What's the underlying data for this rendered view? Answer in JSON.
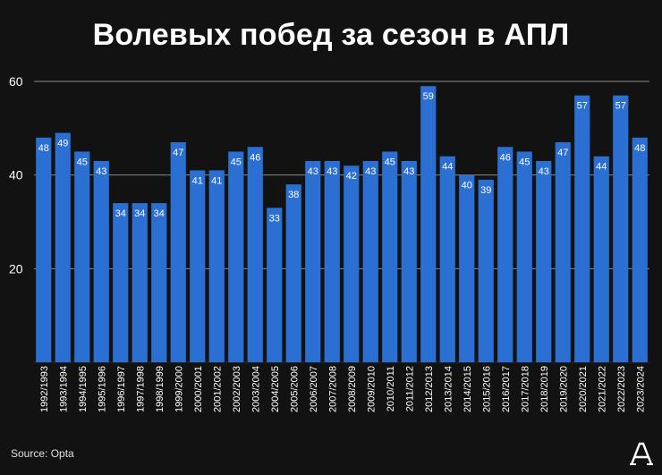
{
  "title": "Волевых побед за сезон в АПЛ",
  "source": "Source: Opta",
  "colors": {
    "background": "#121212",
    "bar": "#2a6fd1",
    "grid": "#8a8a8a",
    "text": "#ffffff"
  },
  "chart_data": {
    "type": "bar",
    "title": "Волевых побед за сезон в АПЛ",
    "xlabel": "",
    "ylabel": "",
    "ylim": [
      0,
      60
    ],
    "yticks": [
      20,
      40,
      60
    ],
    "grid": true,
    "categories": [
      "1992/1993",
      "1993/1994",
      "1994/1995",
      "1995/1996",
      "1996/1997",
      "1997/1998",
      "1998/1999",
      "1999/2000",
      "2000/2001",
      "2001/2002",
      "2002/2003",
      "2003/2004",
      "2004/2005",
      "2005/2006",
      "2006/2007",
      "2007/2008",
      "2008/2009",
      "2009/2010",
      "2010/2011",
      "2011/2012",
      "2012/2013",
      "2013/2014",
      "2014/2015",
      "2015/2016",
      "2016/2017",
      "2017/2018",
      "2018/2019",
      "2019/2020",
      "2020/2021",
      "2021/2022",
      "2022/2023",
      "2023/2024"
    ],
    "values": [
      48,
      49,
      45,
      43,
      34,
      34,
      34,
      47,
      41,
      41,
      45,
      46,
      33,
      38,
      43,
      43,
      42,
      43,
      45,
      43,
      59,
      44,
      40,
      39,
      46,
      45,
      43,
      47,
      57,
      44,
      57,
      48
    ]
  }
}
